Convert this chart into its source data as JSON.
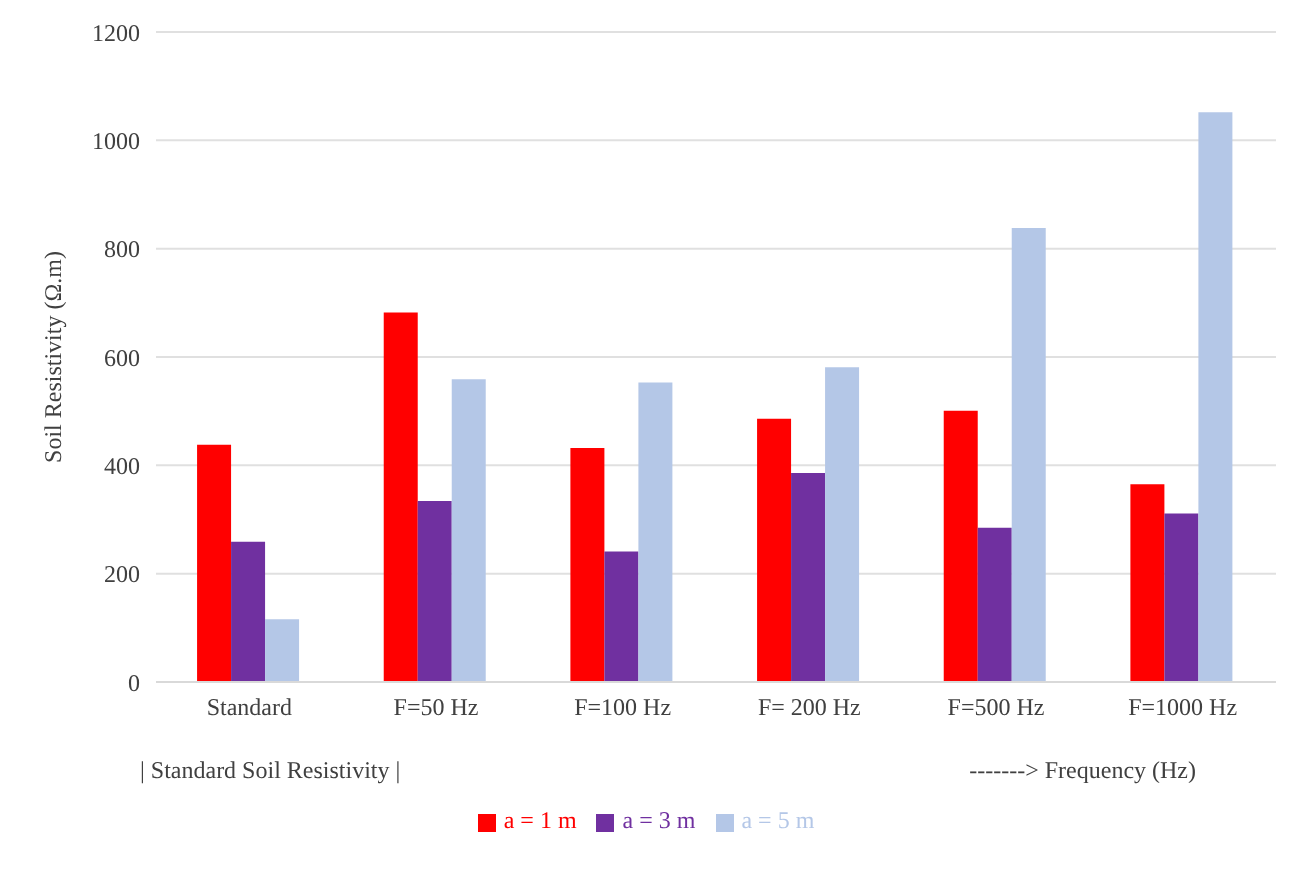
{
  "chart_data": {
    "type": "bar",
    "ylabel": "Soil Resistivity (Ω.m)",
    "categories": [
      "Standard",
      "F=50 Hz",
      "F=100  Hz",
      "F= 200 Hz",
      "F=500 Hz",
      "F=1000 Hz"
    ],
    "series": [
      {
        "name": "a = 1 m",
        "color": "#ff0000",
        "values": [
          438,
          682,
          432,
          486,
          501,
          365
        ]
      },
      {
        "name": "a = 3 m",
        "color": "#7030a0",
        "values": [
          259,
          334,
          241,
          386,
          285,
          311
        ]
      },
      {
        "name": "a = 5 m",
        "color": "#b4c7e7",
        "values": [
          116,
          559,
          553,
          581,
          838,
          1052
        ]
      }
    ],
    "ylim": [
      0,
      1200
    ],
    "yticks": [
      0,
      200,
      400,
      600,
      800,
      1000,
      1200
    ],
    "grid": "y",
    "legend": "bottom",
    "annotations": [
      "| Standard Soil Resistivity |",
      "-------> Frequency (Hz)"
    ]
  }
}
